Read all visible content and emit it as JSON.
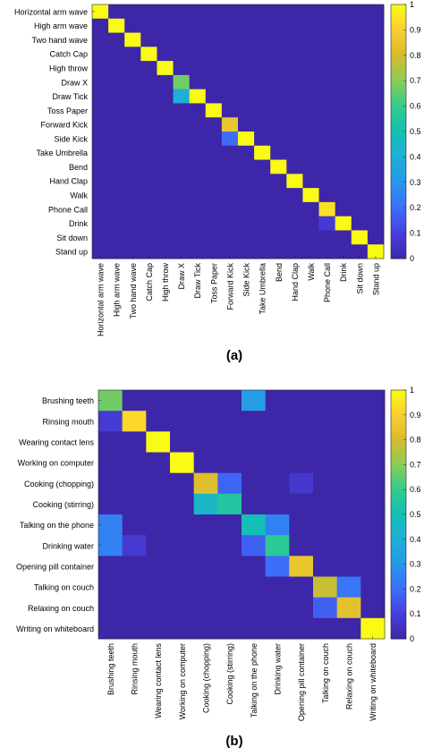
{
  "panels": [
    {
      "label": "(a)"
    },
    {
      "label": "(b)"
    }
  ],
  "chart_data": [
    {
      "type": "heatmap",
      "title": "",
      "colormap": "parula",
      "clim": [
        0,
        1
      ],
      "colorbar_ticks": [
        "0",
        "0.1",
        "0.2",
        "0.3",
        "0.4",
        "0.5",
        "0.6",
        "0.7",
        "0.8",
        "0.9",
        "1"
      ],
      "labels": [
        "Horizontal arm wave",
        "High arm wave",
        "Two hand wave",
        "Catch Cap",
        "High throw",
        "Draw X",
        "Draw Tick",
        "Toss Paper",
        "Forward Kick",
        "Side Kick",
        "Take Umbrella",
        "Bend",
        "Hand Clap",
        "Walk",
        "Phone Call",
        "Drink",
        "Sit down",
        "Stand up"
      ],
      "matrix": [
        [
          1,
          0,
          0,
          0,
          0,
          0,
          0,
          0,
          0,
          0,
          0,
          0,
          0,
          0,
          0,
          0,
          0,
          0
        ],
        [
          0,
          1,
          0,
          0,
          0,
          0,
          0,
          0,
          0,
          0,
          0,
          0,
          0,
          0,
          0,
          0,
          0,
          0
        ],
        [
          0,
          0,
          1,
          0,
          0,
          0,
          0,
          0,
          0,
          0,
          0,
          0,
          0,
          0,
          0,
          0,
          0,
          0
        ],
        [
          0,
          0,
          0,
          1,
          0,
          0,
          0,
          0,
          0,
          0,
          0,
          0,
          0,
          0,
          0,
          0,
          0,
          0
        ],
        [
          0,
          0,
          0,
          0,
          1,
          0,
          0,
          0,
          0,
          0,
          0,
          0,
          0,
          0,
          0,
          0,
          0,
          0
        ],
        [
          0,
          0,
          0,
          0,
          0,
          0.67,
          0,
          0,
          0,
          0,
          0,
          0,
          0,
          0,
          0,
          0,
          0,
          0
        ],
        [
          0,
          0,
          0,
          0,
          0,
          0.4,
          1,
          0,
          0,
          0,
          0,
          0,
          0,
          0,
          0,
          0,
          0,
          0
        ],
        [
          0,
          0,
          0,
          0,
          0,
          0,
          0,
          1,
          0,
          0,
          0,
          0,
          0,
          0,
          0,
          0,
          0,
          0
        ],
        [
          0,
          0,
          0,
          0,
          0,
          0,
          0,
          0,
          0.85,
          0,
          0,
          0,
          0,
          0,
          0,
          0,
          0,
          0
        ],
        [
          0,
          0,
          0,
          0,
          0,
          0,
          0,
          0,
          0.2,
          1,
          0,
          0,
          0,
          0,
          0,
          0,
          0,
          0
        ],
        [
          0,
          0,
          0,
          0,
          0,
          0,
          0,
          0,
          0,
          0,
          1,
          0,
          0,
          0,
          0,
          0,
          0,
          0
        ],
        [
          0,
          0,
          0,
          0,
          0,
          0,
          0,
          0,
          0,
          0,
          0,
          1,
          0,
          0,
          0,
          0,
          0,
          0
        ],
        [
          0,
          0,
          0,
          0,
          0,
          0,
          0,
          0,
          0,
          0,
          0,
          0,
          1,
          0,
          0,
          0,
          0,
          0
        ],
        [
          0,
          0,
          0,
          0,
          0,
          0,
          0,
          0,
          0,
          0,
          0,
          0,
          0,
          1,
          0,
          0,
          0,
          0
        ],
        [
          0,
          0,
          0,
          0,
          0,
          0,
          0,
          0,
          0,
          0,
          0,
          0,
          0,
          0,
          0.94,
          0,
          0,
          0
        ],
        [
          0,
          0,
          0,
          0,
          0,
          0,
          0,
          0,
          0,
          0,
          0,
          0,
          0,
          0,
          0.08,
          1,
          0,
          0
        ],
        [
          0,
          0,
          0,
          0,
          0,
          0,
          0,
          0,
          0,
          0,
          0,
          0,
          0,
          0,
          0,
          0,
          1,
          0
        ],
        [
          0,
          0,
          0,
          0,
          0,
          0,
          0,
          0,
          0,
          0,
          0,
          0,
          0,
          0,
          0,
          0,
          0,
          1
        ]
      ]
    },
    {
      "type": "heatmap",
      "title": "",
      "colormap": "parula",
      "clim": [
        0,
        1
      ],
      "colorbar_ticks": [
        "0",
        "0.1",
        "0.2",
        "0.3",
        "0.4",
        "0.5",
        "0.6",
        "0.7",
        "0.8",
        "0.9",
        "1"
      ],
      "labels": [
        "Brushing teeth",
        "Rinsing mouth",
        "Wearing contact lens",
        "Working on computer",
        "Cooking (chopping)",
        "Cooking (stirring)",
        "Talking on the phone",
        "Drinking water",
        "Opening pill container",
        "Talking on couch",
        "Relaxing on couch",
        "Writing on whiteboard"
      ],
      "matrix": [
        [
          0.67,
          0,
          0,
          0,
          0,
          0,
          0.33,
          0,
          0,
          0,
          0,
          0
        ],
        [
          0.08,
          0.92,
          0,
          0,
          0,
          0,
          0,
          0,
          0,
          0,
          0,
          0
        ],
        [
          0,
          0,
          1,
          0,
          0,
          0,
          0,
          0,
          0,
          0,
          0,
          0
        ],
        [
          0,
          0,
          0,
          1,
          0,
          0,
          0,
          0,
          0,
          0,
          0,
          0
        ],
        [
          0,
          0,
          0,
          0,
          0.82,
          0.18,
          0,
          0,
          0.07,
          0,
          0,
          0
        ],
        [
          0,
          0,
          0,
          0,
          0.45,
          0.55,
          0,
          0,
          0,
          0,
          0,
          0
        ],
        [
          0.25,
          0,
          0,
          0,
          0,
          0,
          0.5,
          0.25,
          0,
          0,
          0,
          0
        ],
        [
          0.25,
          0.08,
          0,
          0,
          0,
          0,
          0.17,
          0.58,
          0,
          0,
          0,
          0
        ],
        [
          0,
          0,
          0,
          0,
          0,
          0,
          0,
          0.2,
          0.85,
          0,
          0,
          0
        ],
        [
          0,
          0,
          0,
          0,
          0,
          0,
          0,
          0,
          0,
          0.78,
          0.22,
          0
        ],
        [
          0,
          0,
          0,
          0,
          0,
          0,
          0,
          0,
          0,
          0.17,
          0.83,
          0
        ],
        [
          0,
          0,
          0,
          0,
          0,
          0,
          0,
          0,
          0,
          0,
          0,
          1
        ]
      ]
    }
  ]
}
